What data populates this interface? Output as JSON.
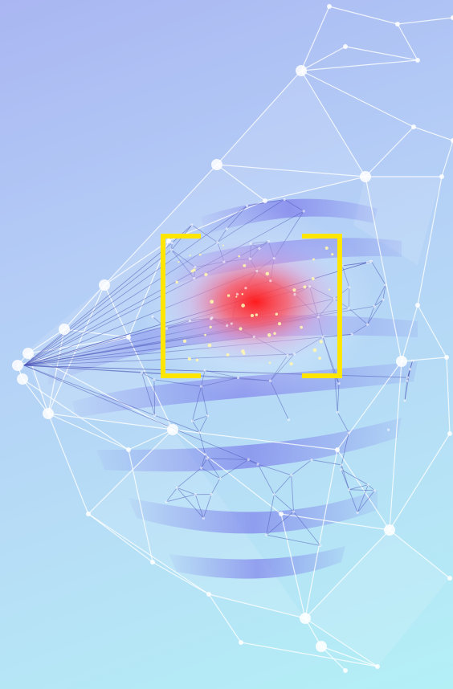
{
  "image": {
    "subject": "breast-mesh-illustration",
    "colors": {
      "background_top": "#a9b6f2",
      "background_bottom": "#b3f0f6",
      "mesh_line": "#ffffff",
      "inner_mesh": "#5a63c9",
      "tissue_band": "#6e66e8",
      "hotspot": "#ff1e1e",
      "bracket": "#ffe600"
    },
    "icons": [
      "focus-bracket-left-icon",
      "focus-bracket-right-icon"
    ]
  }
}
